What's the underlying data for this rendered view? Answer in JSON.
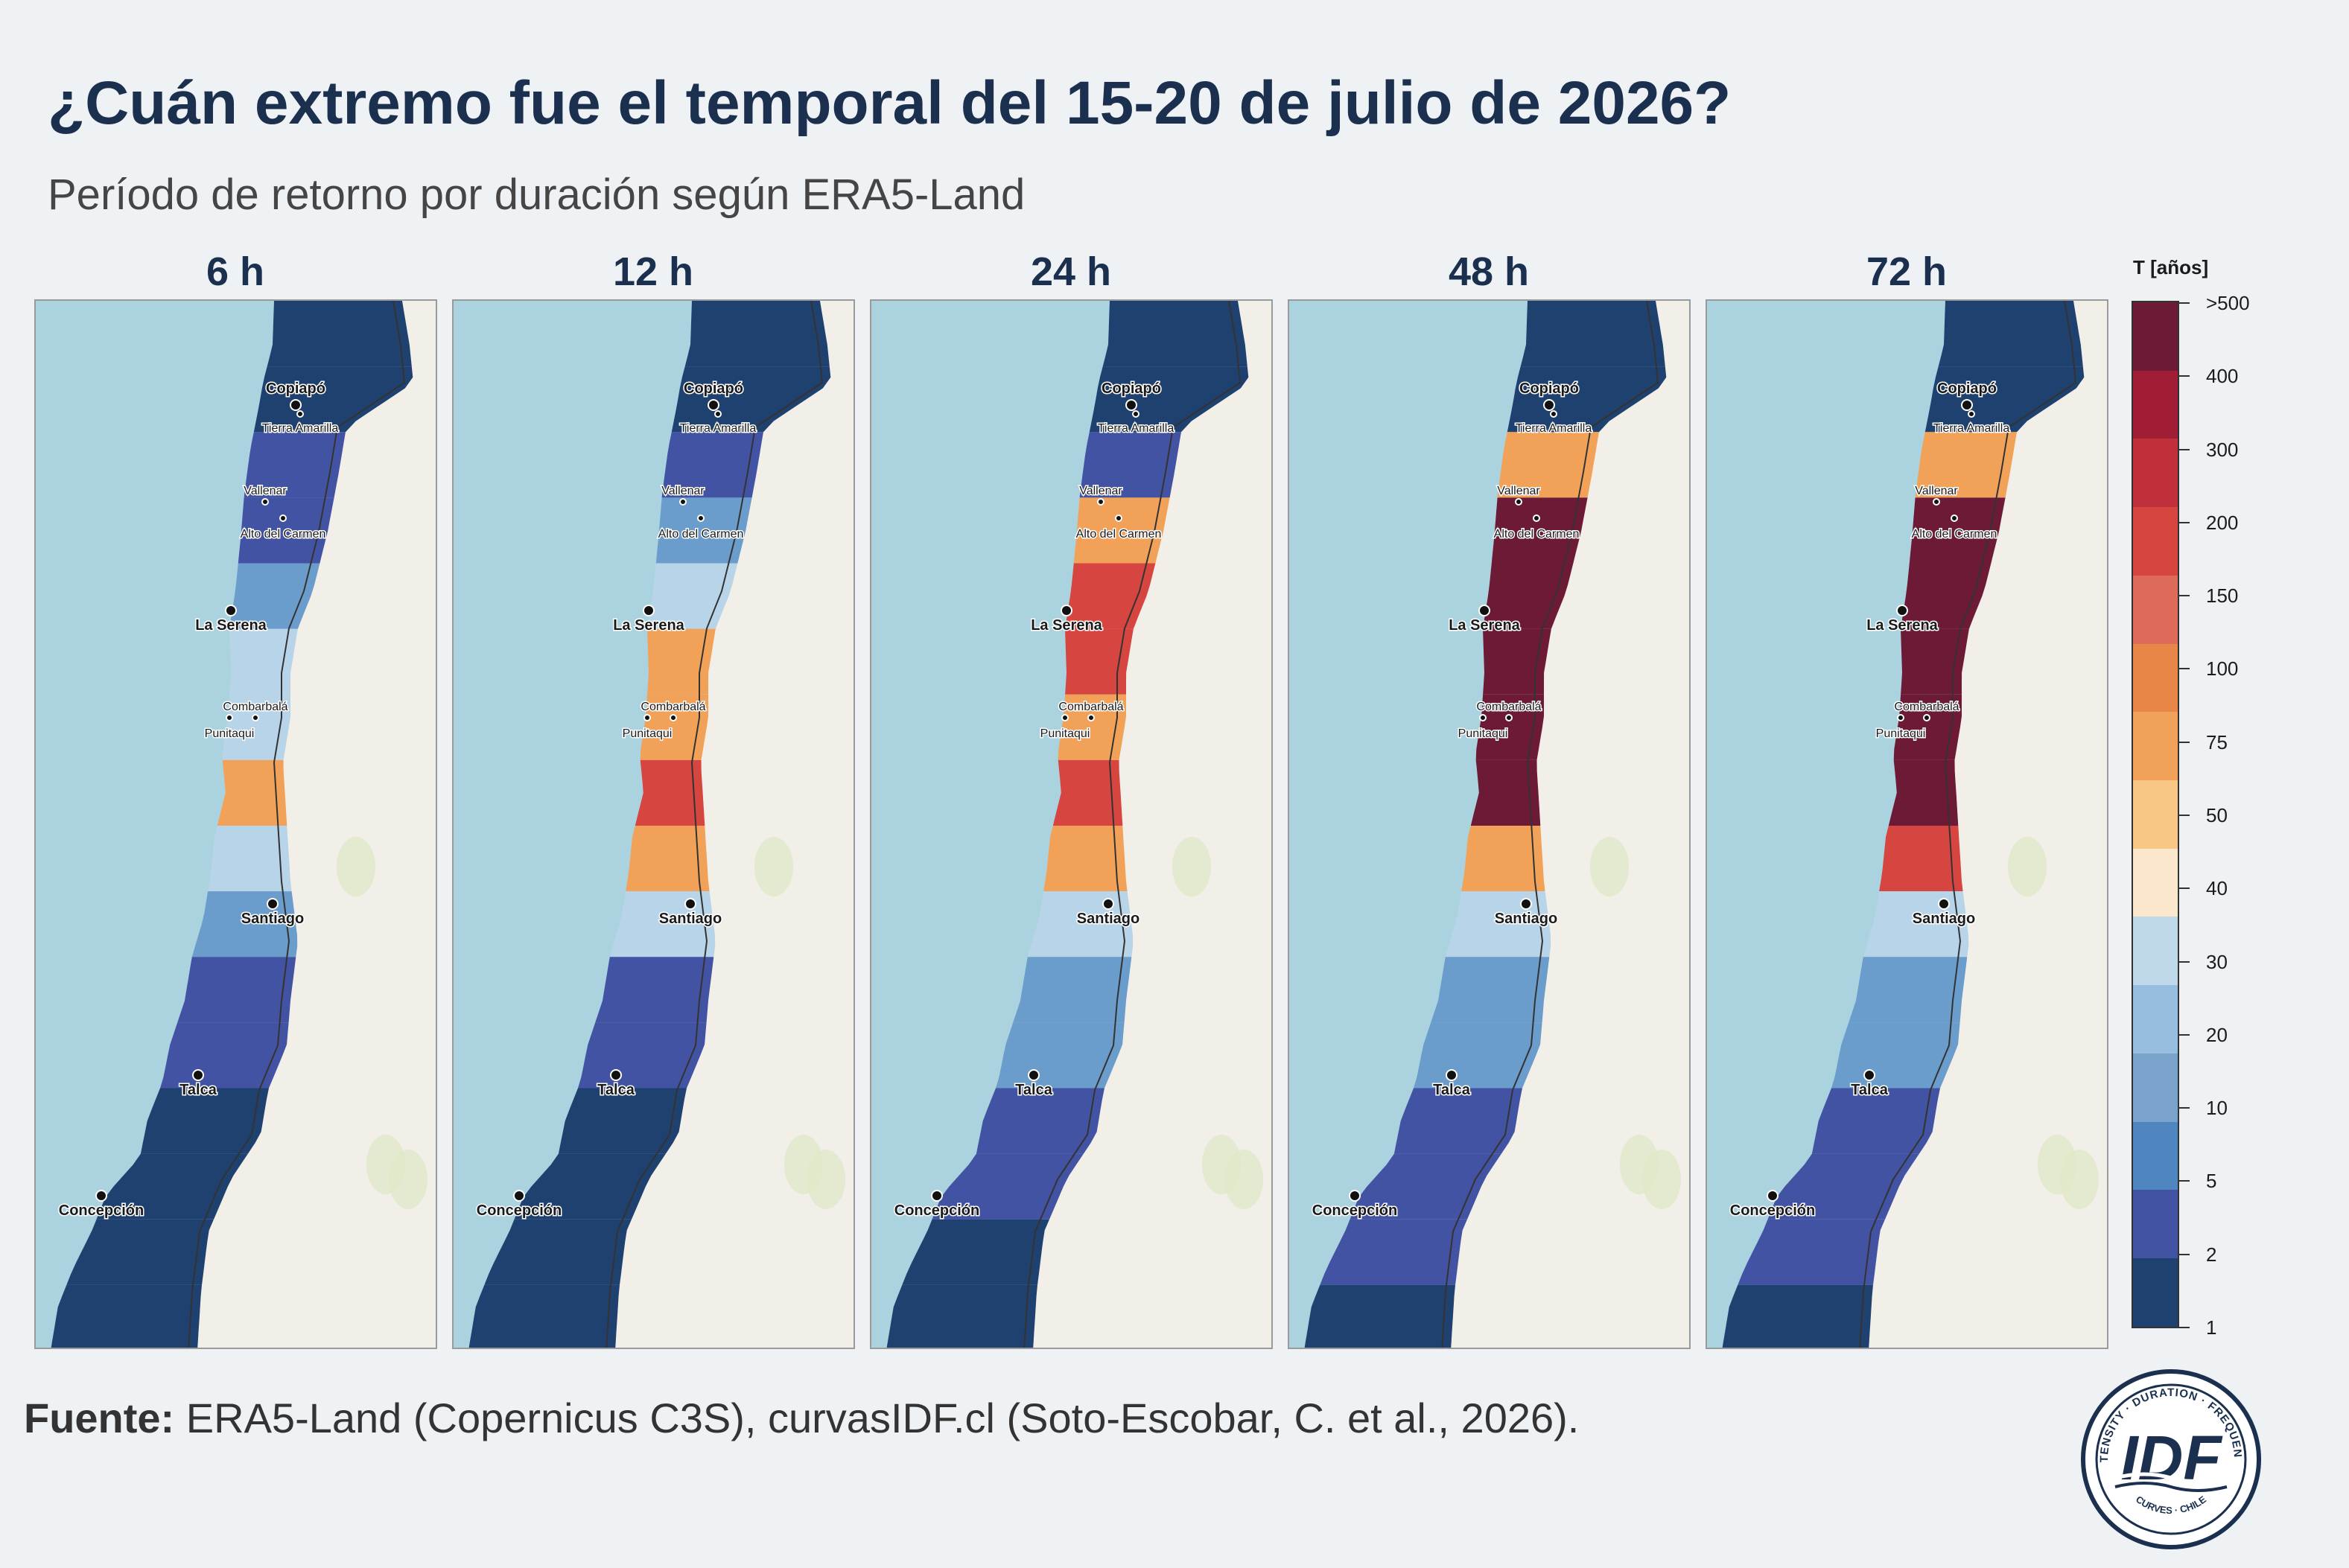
{
  "title": "¿Cuán extremo fue el temporal del 15-20 de julio de 2026?",
  "subtitle": "Período de retorno por duración según ERA5-Land",
  "panels": [
    {
      "label": "6 h",
      "zones": [
        "d",
        "d",
        "b",
        "b",
        "m",
        "l",
        "l",
        "o",
        "l",
        "m",
        "b",
        "b",
        "d",
        "d",
        "d",
        "d"
      ]
    },
    {
      "label": "12 h",
      "zones": [
        "d",
        "d",
        "b",
        "m",
        "l",
        "o",
        "o",
        "r",
        "o",
        "l",
        "b",
        "b",
        "d",
        "d",
        "d",
        "d"
      ]
    },
    {
      "label": "24 h",
      "zones": [
        "d",
        "d",
        "b",
        "o",
        "r",
        "r",
        "o",
        "r",
        "o",
        "l",
        "m",
        "m",
        "b",
        "b",
        "d",
        "d"
      ]
    },
    {
      "label": "48 h",
      "zones": [
        "d",
        "d",
        "o",
        "k",
        "k",
        "k",
        "k",
        "k",
        "o",
        "l",
        "m",
        "m",
        "b",
        "b",
        "b",
        "d"
      ]
    },
    {
      "label": "72 h",
      "zones": [
        "d",
        "d",
        "o",
        "k",
        "k",
        "k",
        "k",
        "k",
        "r",
        "l",
        "m",
        "m",
        "b",
        "b",
        "b",
        "d"
      ]
    }
  ],
  "cities": [
    {
      "name": "Copiapó"
    },
    {
      "name": "Tierra Amarilla"
    },
    {
      "name": "Vallenar"
    },
    {
      "name": "Alto del Carmen"
    },
    {
      "name": "La Serena"
    },
    {
      "name": "Combarbalá"
    },
    {
      "name": "Punitaqui"
    },
    {
      "name": "Santiago"
    },
    {
      "name": "Talca"
    },
    {
      "name": "Concepción"
    }
  ],
  "legend": {
    "title": "T [años]",
    "ticks": [
      ">500",
      "400",
      "300",
      "200",
      "150",
      "100",
      "75",
      "50",
      "40",
      "30",
      "20",
      "10",
      "5",
      "2",
      "1"
    ],
    "colors": [
      "#6d1a36",
      "#a11d36",
      "#c0303a",
      "#d6453f",
      "#de6a5a",
      "#e88648",
      "#f2a258",
      "#f8c785",
      "#fbe7cc",
      "#c0d9ea",
      "#98bedf",
      "#7aa3cb",
      "#4f86bf",
      "#4353a3",
      "#1f4170"
    ]
  },
  "zone_colors": {
    "d": "#1f4170",
    "b": "#4353a3",
    "m": "#6a9ccc",
    "l": "#b8d4e8",
    "o": "#f2a258",
    "r": "#d6453f",
    "k": "#6d1a36"
  },
  "source_label": "Fuente:",
  "source_text": " ERA5-Land (Copernicus C3S), curvasIDF.cl (Soto-Escobar, C. et al., 2026).",
  "logo": {
    "top_text": "INTENSITY · DURATION · FREQUENCY",
    "bottom_text": "CURVES · CHILE",
    "main": "IDF"
  }
}
